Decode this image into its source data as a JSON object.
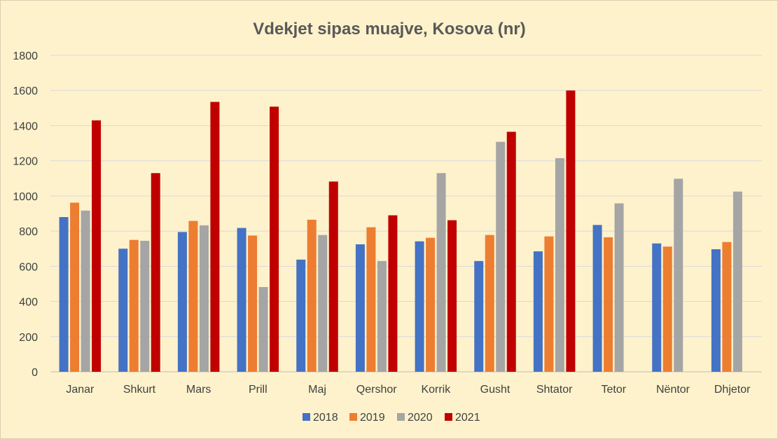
{
  "chart_data": {
    "type": "bar",
    "title": "Vdekjet sipas muajve, Kosova (nr)",
    "xlabel": "",
    "ylabel": "",
    "categories": [
      "Janar",
      "Shkurt",
      "Mars",
      "Prill",
      "Maj",
      "Qershor",
      "Korrik",
      "Gusht",
      "Shtator",
      "Tetor",
      "Nëntor",
      "Dhjetor"
    ],
    "series": [
      {
        "name": "2018",
        "color": "#4472c4",
        "values": [
          880,
          700,
          795,
          818,
          638,
          725,
          742,
          630,
          685,
          835,
          730,
          697
        ]
      },
      {
        "name": "2019",
        "color": "#ed7d31",
        "values": [
          962,
          750,
          858,
          775,
          865,
          822,
          762,
          778,
          770,
          765,
          712,
          738
        ]
      },
      {
        "name": "2020",
        "color": "#a5a5a5",
        "values": [
          917,
          745,
          833,
          482,
          778,
          630,
          1130,
          1308,
          1215,
          958,
          1098,
          1025
        ]
      },
      {
        "name": "2021",
        "color": "#c00000",
        "values": [
          1430,
          1130,
          1535,
          1508,
          1082,
          890,
          862,
          1365,
          1600,
          null,
          null,
          null
        ]
      }
    ],
    "ylim": [
      0,
      1800
    ],
    "yticks": [
      0,
      200,
      400,
      600,
      800,
      1000,
      1200,
      1400,
      1600,
      1800
    ],
    "grid": true,
    "legend_position": "bottom"
  }
}
